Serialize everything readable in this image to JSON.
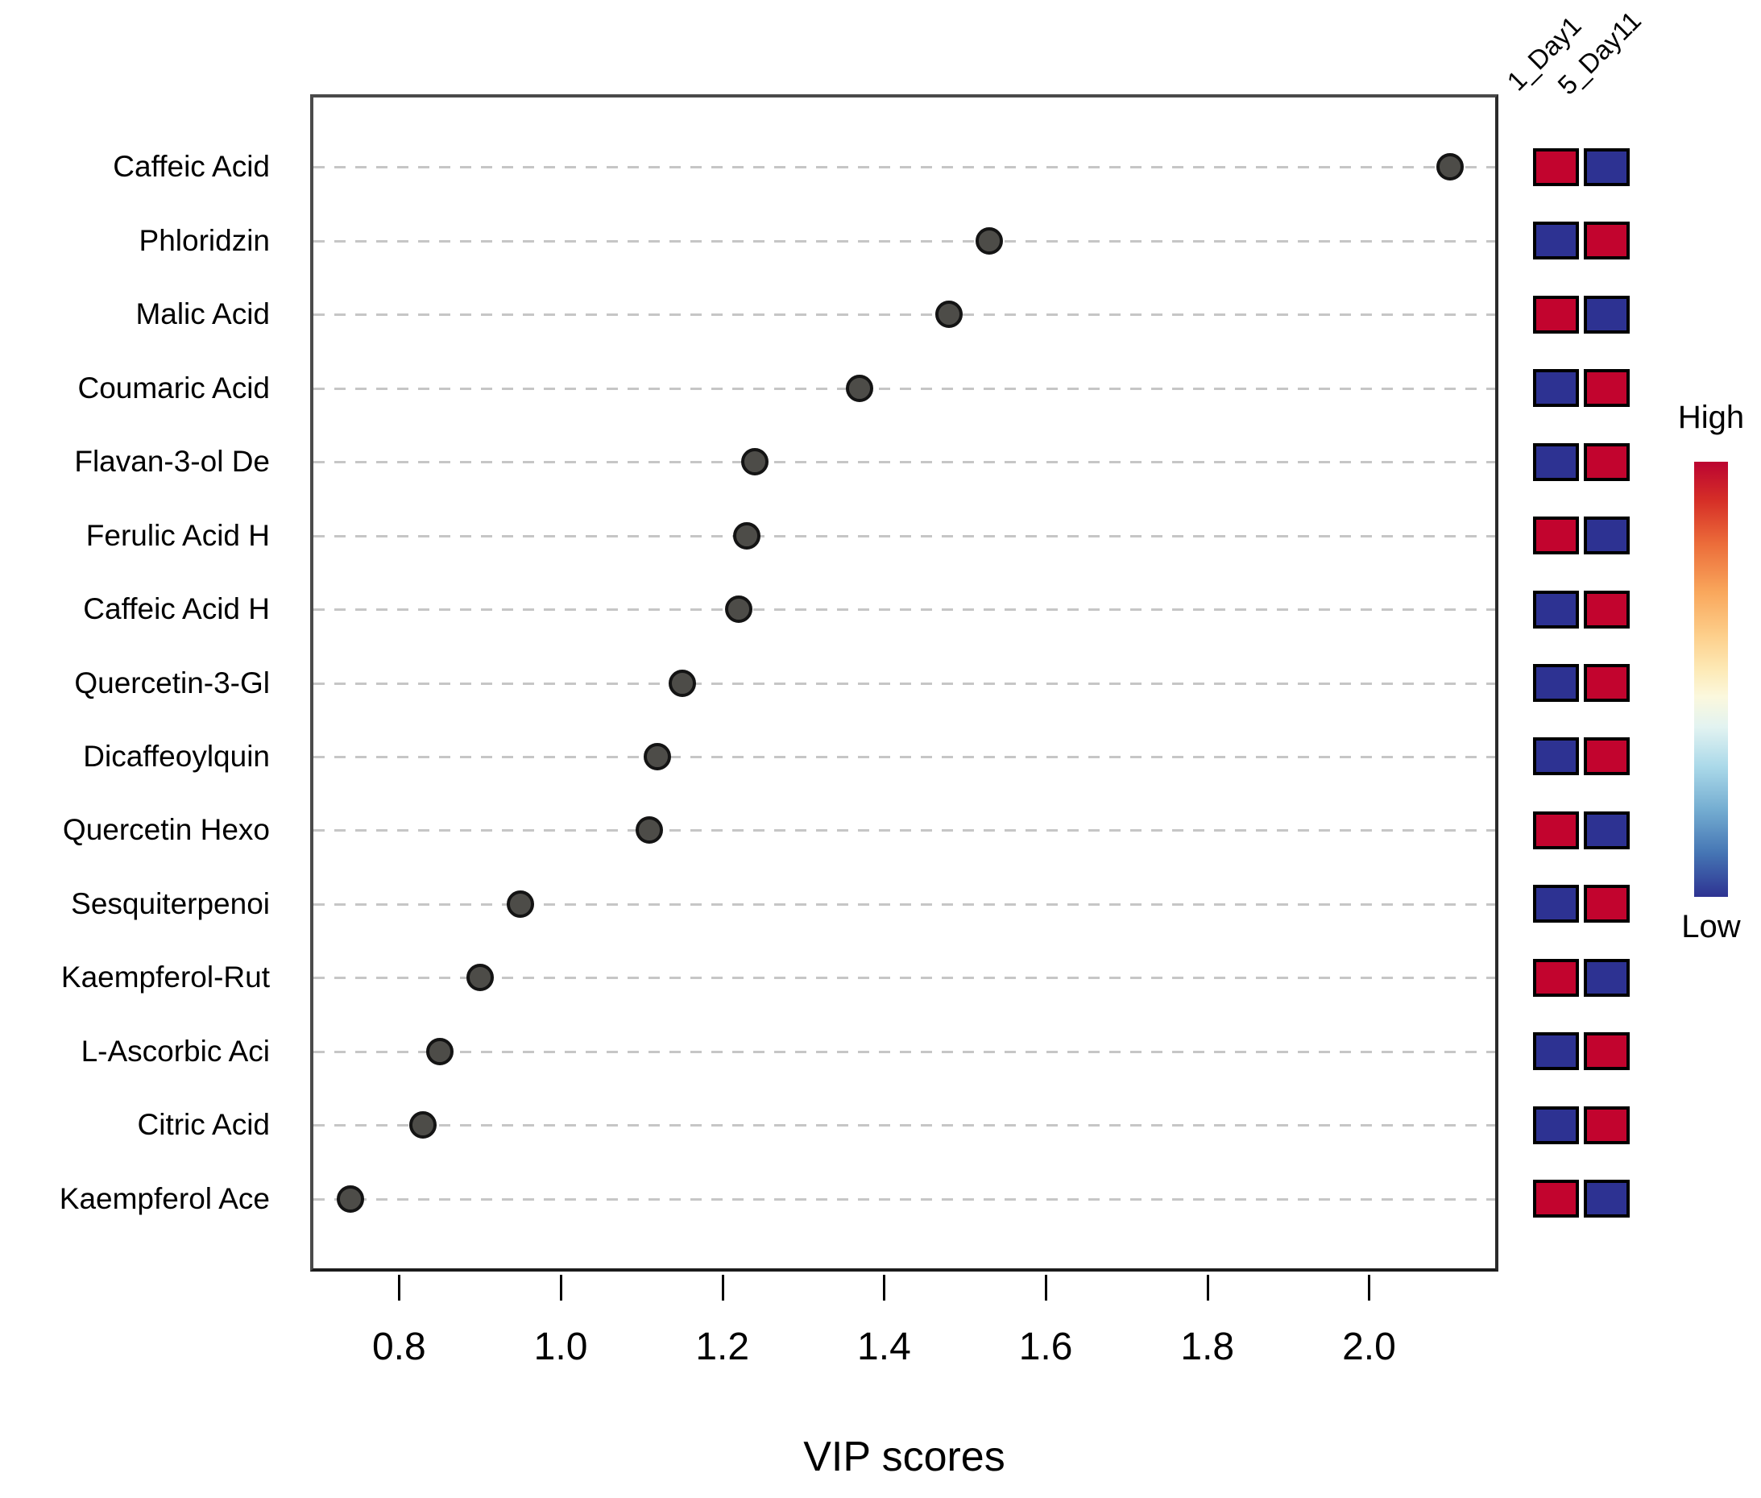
{
  "legend": {
    "high": "High",
    "low": "Low"
  },
  "colors": {
    "high_cell": "#c2042e",
    "low_cell": "#2d3292",
    "dot_fill": "#4d4c48",
    "dot_border": "#141414",
    "grid_line": "#c6c6c6",
    "box_border": "#4a4a4a"
  },
  "chart_data": {
    "type": "scatter",
    "title": "",
    "xlabel": "VIP scores",
    "ylabel": "",
    "xlim": [
      0.69,
      2.16
    ],
    "grid": "dashed-horizontal",
    "x_ticks": [
      {
        "value": 0.8,
        "label": "0.8"
      },
      {
        "value": 1.0,
        "label": "1.0"
      },
      {
        "value": 1.2,
        "label": "1.2"
      },
      {
        "value": 1.4,
        "label": "1.4"
      },
      {
        "value": 1.6,
        "label": "1.6"
      },
      {
        "value": 1.8,
        "label": "1.8"
      },
      {
        "value": 2.0,
        "label": "2.0"
      }
    ],
    "heatmap_columns": [
      "1_Day1",
      "5_Day11"
    ],
    "heatmap_legend": {
      "top": "High",
      "bottom": "Low"
    },
    "categories": [
      "Caffeic Acid",
      "Phloridzin",
      "Malic Acid",
      "Coumaric Acid",
      "Flavan-3-ol De",
      "Ferulic Acid H",
      "Caffeic Acid H",
      "Quercetin-3-Gl",
      "Dicaffeoylquin",
      "Quercetin Hexo",
      "Sesquiterpenoi",
      "Kaempferol-Rut",
      "L-Ascorbic Aci",
      "Citric Acid",
      "Kaempferol Ace"
    ],
    "values": [
      2.1,
      1.53,
      1.48,
      1.37,
      1.24,
      1.23,
      1.22,
      1.15,
      1.12,
      1.11,
      0.95,
      0.9,
      0.85,
      0.83,
      0.74
    ],
    "heatmap": [
      [
        "high",
        "low"
      ],
      [
        "low",
        "high"
      ],
      [
        "high",
        "low"
      ],
      [
        "low",
        "high"
      ],
      [
        "low",
        "high"
      ],
      [
        "high",
        "low"
      ],
      [
        "low",
        "high"
      ],
      [
        "low",
        "high"
      ],
      [
        "low",
        "high"
      ],
      [
        "high",
        "low"
      ],
      [
        "low",
        "high"
      ],
      [
        "high",
        "low"
      ],
      [
        "low",
        "high"
      ],
      [
        "low",
        "high"
      ],
      [
        "high",
        "low"
      ]
    ]
  }
}
